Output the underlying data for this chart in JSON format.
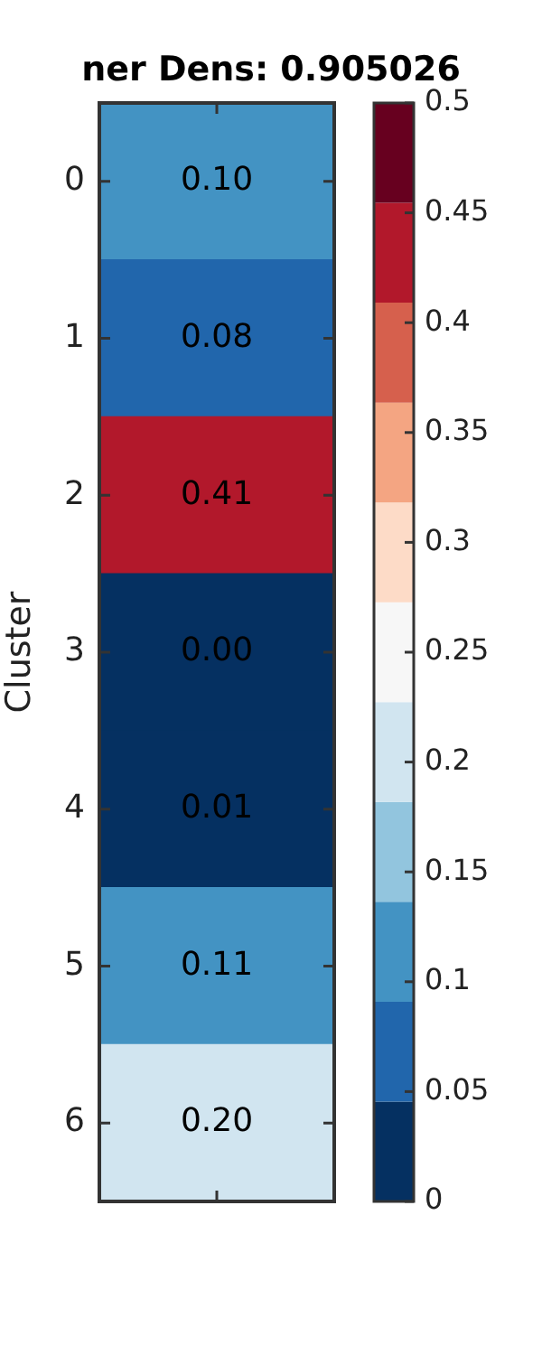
{
  "chart_data": {
    "type": "heatmap",
    "title": "ner Dens: 0.905026",
    "ylabel": "Cluster",
    "categories": [
      null
    ],
    "y_categories": [
      "0",
      "1",
      "2",
      "3",
      "4",
      "5",
      "6"
    ],
    "cells": [
      [
        0.1
      ],
      [
        0.08
      ],
      [
        0.41
      ],
      [
        0.0
      ],
      [
        0.01
      ],
      [
        0.11
      ],
      [
        0.2
      ]
    ],
    "cell_labels": [
      [
        "0.10"
      ],
      [
        "0.08"
      ],
      [
        "0.41"
      ],
      [
        "0.00"
      ],
      [
        "0.01"
      ],
      [
        "0.11"
      ],
      [
        "0.20"
      ]
    ],
    "clim": [
      0,
      0.5
    ],
    "cticks": [
      0,
      0.05,
      0.1,
      0.15,
      0.2,
      0.25,
      0.3,
      0.35,
      0.4,
      0.45,
      0.5
    ]
  }
}
